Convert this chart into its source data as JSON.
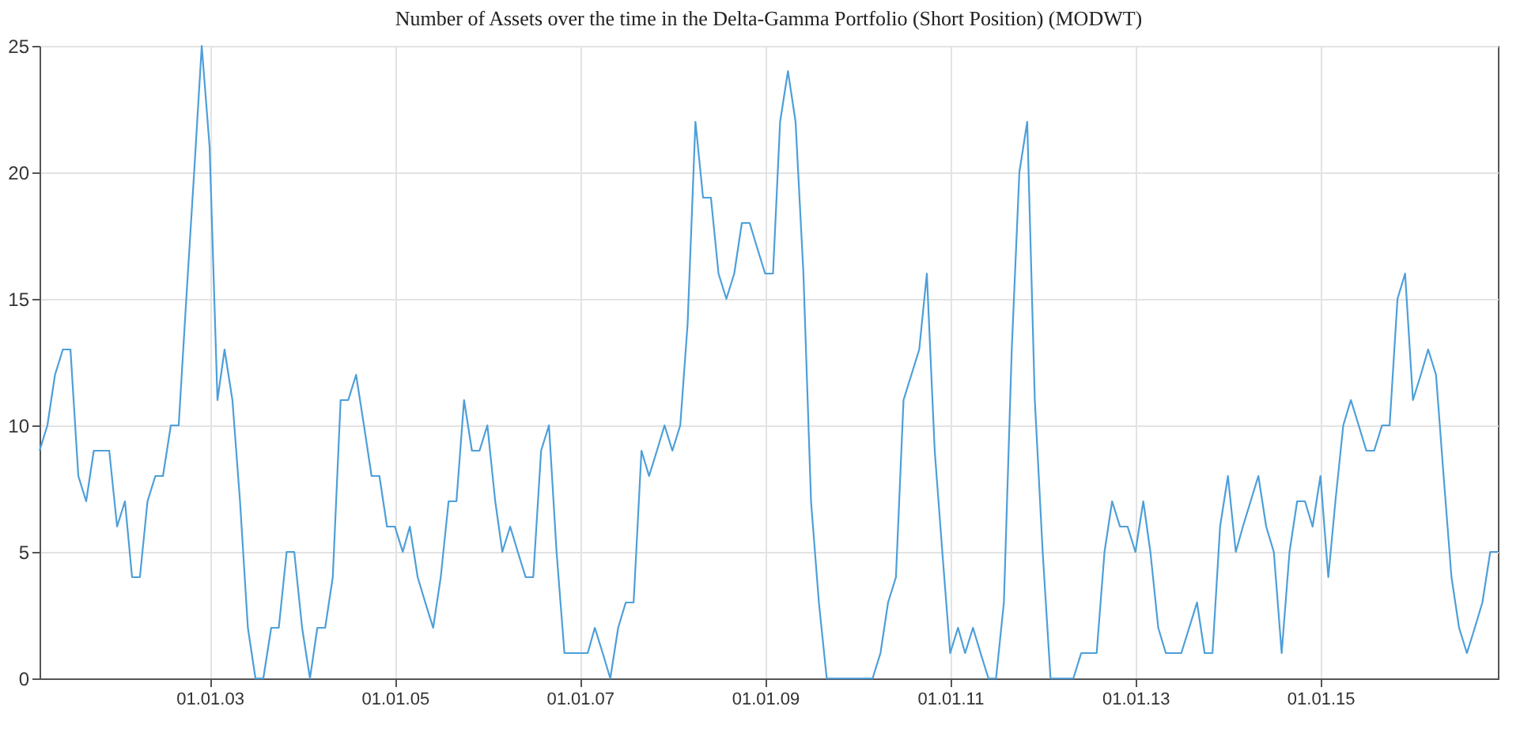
{
  "chart_data": {
    "type": "line",
    "title": "Number of Assets over the time in the Delta-Gamma Portfolio (Short Position) (MODWT)",
    "x": [
      "2001-03",
      "2001-04",
      "2001-05",
      "2001-06",
      "2001-07",
      "2001-08",
      "2001-09",
      "2001-10",
      "2001-11",
      "2001-12",
      "2002-01",
      "2002-02",
      "2002-03",
      "2002-04",
      "2002-05",
      "2002-06",
      "2002-07",
      "2002-08",
      "2002-09",
      "2002-10",
      "2002-11",
      "2002-12",
      "2003-01",
      "2003-02",
      "2003-03",
      "2003-04",
      "2003-05",
      "2003-06",
      "2003-07",
      "2003-08",
      "2003-09",
      "2003-10",
      "2003-11",
      "2003-12",
      "2004-01",
      "2004-02",
      "2004-03",
      "2004-04",
      "2004-05",
      "2004-06",
      "2004-07",
      "2004-08",
      "2004-09",
      "2004-10",
      "2004-11",
      "2004-12",
      "2005-01",
      "2005-02",
      "2005-03",
      "2005-04",
      "2005-05",
      "2005-06",
      "2005-07",
      "2005-08",
      "2005-09",
      "2005-10",
      "2005-11",
      "2005-12",
      "2006-01",
      "2006-02",
      "2006-03",
      "2006-04",
      "2006-05",
      "2006-06",
      "2006-07",
      "2006-08",
      "2006-09",
      "2006-10",
      "2006-11",
      "2006-12",
      "2007-01",
      "2007-02",
      "2007-03",
      "2007-04",
      "2007-05",
      "2007-06",
      "2007-07",
      "2007-08",
      "2007-09",
      "2007-10",
      "2007-11",
      "2007-12",
      "2008-01",
      "2008-02",
      "2008-03",
      "2008-04",
      "2008-05",
      "2008-06",
      "2008-07",
      "2008-08",
      "2008-09",
      "2008-10",
      "2008-11",
      "2008-12",
      "2009-01",
      "2009-02",
      "2009-03",
      "2009-04",
      "2009-05",
      "2009-06",
      "2009-07",
      "2009-08",
      "2009-09",
      "2010-03",
      "2010-04",
      "2010-05",
      "2010-06",
      "2010-07",
      "2010-08",
      "2010-09",
      "2010-10",
      "2010-11",
      "2010-12",
      "2011-01",
      "2011-02",
      "2011-03",
      "2011-04",
      "2011-05",
      "2011-06",
      "2011-07",
      "2011-08",
      "2011-09",
      "2011-10",
      "2011-11",
      "2011-12",
      "2012-01",
      "2012-02",
      "2012-05",
      "2012-06",
      "2012-08",
      "2012-09",
      "2012-10",
      "2012-11",
      "2012-12",
      "2013-01",
      "2013-02",
      "2013-03",
      "2013-04",
      "2013-05",
      "2013-07",
      "2013-08",
      "2013-09",
      "2013-10",
      "2013-11",
      "2013-12",
      "2014-01",
      "2014-02",
      "2014-03",
      "2014-05",
      "2014-06",
      "2014-07",
      "2014-08",
      "2014-09",
      "2014-10",
      "2014-11",
      "2014-12",
      "2015-01",
      "2015-02",
      "2015-03",
      "2015-04",
      "2015-05",
      "2015-06",
      "2015-07",
      "2015-08",
      "2015-09",
      "2015-10",
      "2015-11",
      "2015-12",
      "2016-01",
      "2016-02",
      "2016-03",
      "2016-04",
      "2016-05",
      "2016-06",
      "2016-07",
      "2016-08",
      "2016-09",
      "2016-10",
      "2016-11",
      "2016-12"
    ],
    "series": [
      {
        "color": "#4d9fd9",
        "values": [
          9,
          10,
          12,
          13,
          13,
          8,
          7,
          9,
          9,
          9,
          6,
          7,
          4,
          4,
          7,
          8,
          8,
          10,
          10,
          15,
          20,
          25,
          21,
          11,
          13,
          11,
          7,
          2,
          0,
          0,
          2,
          2,
          5,
          5,
          2,
          0,
          2,
          2,
          4,
          11,
          11,
          12,
          10,
          8,
          8,
          6,
          6,
          5,
          6,
          4,
          3,
          2,
          4,
          7,
          7,
          11,
          9,
          9,
          10,
          7,
          5,
          6,
          5,
          4,
          4,
          9,
          10,
          5,
          1,
          1,
          1,
          1,
          2,
          1,
          0,
          2,
          3,
          3,
          9,
          8,
          9,
          10,
          9,
          10,
          14,
          22,
          19,
          19,
          16,
          15,
          16,
          18,
          18,
          17,
          16,
          16,
          22,
          24,
          22,
          16,
          7,
          3,
          0,
          0,
          1,
          3,
          4,
          11,
          12,
          13,
          16,
          9,
          5,
          1,
          2,
          1,
          2,
          1,
          0,
          0,
          3,
          13,
          20,
          22,
          11,
          5,
          0,
          0,
          1,
          1,
          5,
          7,
          6,
          6,
          5,
          7,
          5,
          2,
          1,
          1,
          2,
          3,
          1,
          1,
          6,
          8,
          5,
          6,
          8,
          6,
          5,
          1,
          5,
          7,
          7,
          6,
          8,
          4,
          7,
          10,
          11,
          10,
          9,
          9,
          10,
          10,
          15,
          16,
          11,
          12,
          13,
          12,
          8,
          4,
          2,
          1,
          2,
          3,
          5,
          5
        ]
      }
    ],
    "xlim": [
      "2001-03",
      "2016-12"
    ],
    "xticks": [
      {
        "value": "2003-01-01",
        "label": "01.01.03"
      },
      {
        "value": "2005-01-01",
        "label": "01.01.05"
      },
      {
        "value": "2007-01-01",
        "label": "01.01.07"
      },
      {
        "value": "2009-01-01",
        "label": "01.01.09"
      },
      {
        "value": "2011-01-01",
        "label": "01.01.11"
      },
      {
        "value": "2013-01-01",
        "label": "01.01.13"
      },
      {
        "value": "2015-01-01",
        "label": "01.01.15"
      }
    ],
    "ylim": [
      0,
      25
    ],
    "yticks": [
      0,
      5,
      10,
      15,
      20,
      25
    ],
    "grid": true,
    "marker": "none",
    "line_style": "solid"
  }
}
